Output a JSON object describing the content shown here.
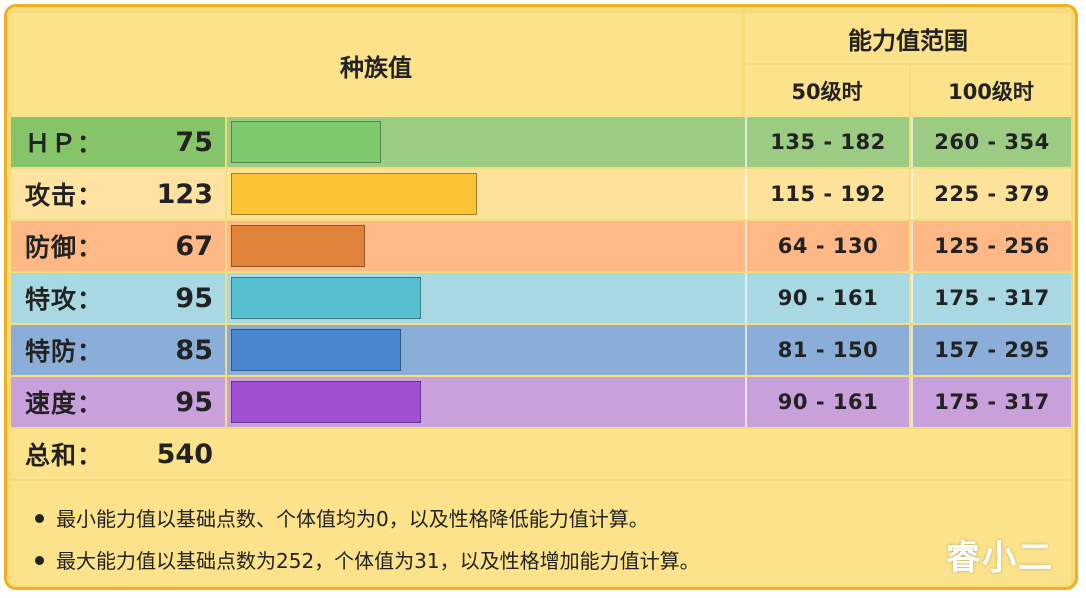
{
  "header": {
    "base_stats_title": "种族值",
    "range_title": "能力值范围",
    "level50_label": "50级时",
    "level100_label": "100级时"
  },
  "stats": [
    {
      "name": "ＨＰ：",
      "value": 75,
      "value_text": "75",
      "range50": "135 - 182",
      "range100": "260 - 354",
      "bar_color": "#7ec86e",
      "row_color": "#9ccc84",
      "label_color": "#86c46a"
    },
    {
      "name": "攻击：",
      "value": 123,
      "value_text": "123",
      "range50": "115 - 192",
      "range100": "225 - 379",
      "bar_color": "#fcc434",
      "row_color": "#fde39a",
      "label_color": "#fde2a0"
    },
    {
      "name": "防御：",
      "value": 67,
      "value_text": "67",
      "range50": "64 - 130",
      "range100": "125 - 256",
      "bar_color": "#e08238",
      "row_color": "#fdb886",
      "label_color": "#fdb886"
    },
    {
      "name": "特攻：",
      "value": 95,
      "value_text": "95",
      "range50": "90 - 161",
      "range100": "175 - 317",
      "bar_color": "#56c0d0",
      "row_color": "#a8d8e2",
      "label_color": "#a8d8e2"
    },
    {
      "name": "特防：",
      "value": 85,
      "value_text": "85",
      "range50": "81 - 150",
      "range100": "157 - 295",
      "bar_color": "#4a86d0",
      "row_color": "#8aaed8",
      "label_color": "#8aaed8"
    },
    {
      "name": "速度：",
      "value": 95,
      "value_text": "95",
      "range50": "90 - 161",
      "range100": "175 - 317",
      "bar_color": "#a050d0",
      "row_color": "#c8a0dc",
      "label_color": "#c8a0dc"
    }
  ],
  "total": {
    "name": "总和：",
    "value": "540"
  },
  "bar_max": 255,
  "notes": [
    "最小能力值以基础点数、个体值均为0，以及性格降低能力值计算。",
    "最大能力值以基础点数为252，个体值为31，以及性格增加能力值计算。"
  ],
  "watermark": "睿小二"
}
